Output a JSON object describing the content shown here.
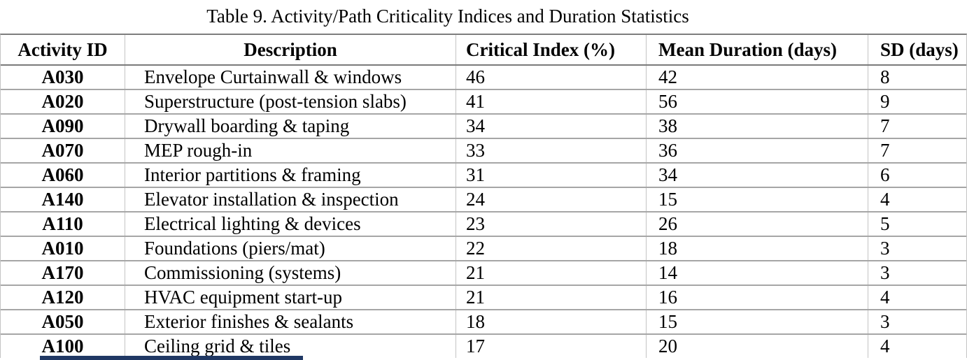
{
  "title": "Table 9. Activity/Path Criticality Indices and Duration Statistics",
  "table": {
    "columns": [
      "Activity ID",
      "Description",
      "Critical Index (%)",
      "Mean Duration (days)",
      "SD (days)"
    ],
    "rows": [
      [
        "A030",
        "Envelope Curtainwall & windows",
        "46",
        "42",
        "8"
      ],
      [
        "A020",
        "Superstructure (post-tension slabs)",
        "41",
        "56",
        "9"
      ],
      [
        "A090",
        "Drywall boarding & taping",
        "34",
        "38",
        "7"
      ],
      [
        "A070",
        "MEP rough-in",
        "33",
        "36",
        "7"
      ],
      [
        "A060",
        "Interior partitions & framing",
        "31",
        "34",
        "6"
      ],
      [
        "A140",
        "Elevator installation & inspection",
        "24",
        "15",
        "4"
      ],
      [
        "A110",
        "Electrical lighting & devices",
        "23",
        "26",
        "5"
      ],
      [
        "A010",
        "Foundations (piers/mat)",
        "22",
        "18",
        "3"
      ],
      [
        "A170",
        "Commissioning (systems)",
        "21",
        "14",
        "3"
      ],
      [
        "A120",
        "HVAC equipment start-up",
        "21",
        "16",
        "4"
      ],
      [
        "A050",
        "Exterior finishes & sealants",
        "18",
        "15",
        "3"
      ],
      [
        "A100",
        "Ceiling grid & tiles",
        "17",
        "20",
        "4"
      ]
    ]
  },
  "colors": {
    "header_rule": "#7a7a7a",
    "row_rule": "#a6a6a6",
    "column_rule": "#c4c4c4",
    "bottom_bar_accent": "#203864"
  }
}
